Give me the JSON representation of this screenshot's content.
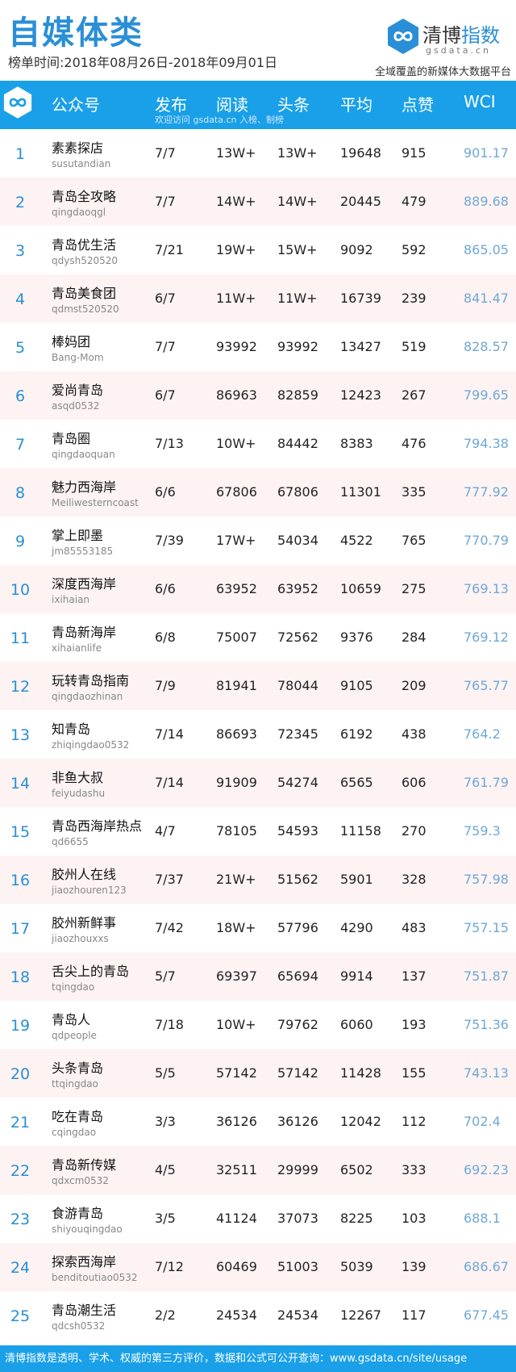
{
  "header": {
    "title": "自媒体类",
    "subtitle": "榜单时间:2018年08月26日-2018年09月01日",
    "brand_prefix": "清博",
    "brand_suffix": "指数",
    "brand_domain": "gsdata.cn",
    "tagline": "全域覆盖的新媒体大数据平台"
  },
  "table": {
    "columns": [
      "公众号",
      "发布",
      "阅读",
      "头条",
      "平均",
      "点赞",
      "WCI"
    ],
    "hint": "欢迎访问 gsdata.cn 入榜、制榜",
    "rows": [
      {
        "rank": "1",
        "name": "素素探店",
        "account": "susutandian",
        "publish": "7/7",
        "read": "13W+",
        "headline": "13W+",
        "avg": "19648",
        "likes": "915",
        "wci": "901.17"
      },
      {
        "rank": "2",
        "name": "青岛全攻略",
        "account": "qingdaoqgl",
        "publish": "7/7",
        "read": "14W+",
        "headline": "14W+",
        "avg": "20445",
        "likes": "479",
        "wci": "889.68"
      },
      {
        "rank": "3",
        "name": "青岛优生活",
        "account": "qdysh520520",
        "publish": "7/21",
        "read": "19W+",
        "headline": "15W+",
        "avg": "9092",
        "likes": "592",
        "wci": "865.05"
      },
      {
        "rank": "4",
        "name": "青岛美食团",
        "account": "qdmst520520",
        "publish": "6/7",
        "read": "11W+",
        "headline": "11W+",
        "avg": "16739",
        "likes": "239",
        "wci": "841.47"
      },
      {
        "rank": "5",
        "name": "棒妈团",
        "account": "Bang-Mom",
        "publish": "7/7",
        "read": "93992",
        "headline": "93992",
        "avg": "13427",
        "likes": "519",
        "wci": "828.57"
      },
      {
        "rank": "6",
        "name": "爱尚青岛",
        "account": "asqd0532",
        "publish": "6/7",
        "read": "86963",
        "headline": "82859",
        "avg": "12423",
        "likes": "267",
        "wci": "799.65"
      },
      {
        "rank": "7",
        "name": "青岛圈",
        "account": "qingdaoquan",
        "publish": "7/13",
        "read": "10W+",
        "headline": "84442",
        "avg": "8383",
        "likes": "476",
        "wci": "794.38"
      },
      {
        "rank": "8",
        "name": "魅力西海岸",
        "account": "Meiliwesterncoast",
        "publish": "6/6",
        "read": "67806",
        "headline": "67806",
        "avg": "11301",
        "likes": "335",
        "wci": "777.92"
      },
      {
        "rank": "9",
        "name": "掌上即墨",
        "account": "jm85553185",
        "publish": "7/39",
        "read": "17W+",
        "headline": "54034",
        "avg": "4522",
        "likes": "765",
        "wci": "770.79"
      },
      {
        "rank": "10",
        "name": "深度西海岸",
        "account": "ixihaian",
        "publish": "6/6",
        "read": "63952",
        "headline": "63952",
        "avg": "10659",
        "likes": "275",
        "wci": "769.13"
      },
      {
        "rank": "11",
        "name": "青岛新海岸",
        "account": "xihaianlife",
        "publish": "6/8",
        "read": "75007",
        "headline": "72562",
        "avg": "9376",
        "likes": "284",
        "wci": "769.12"
      },
      {
        "rank": "12",
        "name": "玩转青岛指南",
        "account": "qingdaozhinan",
        "publish": "7/9",
        "read": "81941",
        "headline": "78044",
        "avg": "9105",
        "likes": "209",
        "wci": "765.77"
      },
      {
        "rank": "13",
        "name": "知青岛",
        "account": "zhiqingdao0532",
        "publish": "7/14",
        "read": "86693",
        "headline": "72345",
        "avg": "6192",
        "likes": "438",
        "wci": "764.2"
      },
      {
        "rank": "14",
        "name": "非鱼大叔",
        "account": "feiyudashu",
        "publish": "7/14",
        "read": "91909",
        "headline": "54274",
        "avg": "6565",
        "likes": "606",
        "wci": "761.79"
      },
      {
        "rank": "15",
        "name": "青岛西海岸热点",
        "account": "qd6655",
        "publish": "4/7",
        "read": "78105",
        "headline": "54593",
        "avg": "11158",
        "likes": "270",
        "wci": "759.3"
      },
      {
        "rank": "16",
        "name": "胶州人在线",
        "account": "jiaozhouren123",
        "publish": "7/37",
        "read": "21W+",
        "headline": "51562",
        "avg": "5901",
        "likes": "328",
        "wci": "757.98"
      },
      {
        "rank": "17",
        "name": "胶州新鲜事",
        "account": "jiaozhouxxs",
        "publish": "7/42",
        "read": "18W+",
        "headline": "57796",
        "avg": "4290",
        "likes": "483",
        "wci": "757.15"
      },
      {
        "rank": "18",
        "name": "舌尖上的青岛",
        "account": "tqingdao",
        "publish": "5/7",
        "read": "69397",
        "headline": "65694",
        "avg": "9914",
        "likes": "137",
        "wci": "751.87"
      },
      {
        "rank": "19",
        "name": "青岛人",
        "account": "qdpeople",
        "publish": "7/18",
        "read": "10W+",
        "headline": "79762",
        "avg": "6060",
        "likes": "193",
        "wci": "751.36"
      },
      {
        "rank": "20",
        "name": "头条青岛",
        "account": "ttqingdao",
        "publish": "5/5",
        "read": "57142",
        "headline": "57142",
        "avg": "11428",
        "likes": "155",
        "wci": "743.13"
      },
      {
        "rank": "21",
        "name": "吃在青岛",
        "account": "cqingdao",
        "publish": "3/3",
        "read": "36126",
        "headline": "36126",
        "avg": "12042",
        "likes": "112",
        "wci": "702.4"
      },
      {
        "rank": "22",
        "name": "青岛新传媒",
        "account": "qdxcm0532",
        "publish": "4/5",
        "read": "32511",
        "headline": "29999",
        "avg": "6502",
        "likes": "333",
        "wci": "692.23"
      },
      {
        "rank": "23",
        "name": "食游青岛",
        "account": "shiyouqingdao",
        "publish": "3/5",
        "read": "41124",
        "headline": "37073",
        "avg": "8225",
        "likes": "103",
        "wci": "688.1"
      },
      {
        "rank": "24",
        "name": "探索西海岸",
        "account": "benditoutiao0532",
        "publish": "7/12",
        "read": "60469",
        "headline": "51003",
        "avg": "5039",
        "likes": "139",
        "wci": "686.67"
      },
      {
        "rank": "25",
        "name": "青岛潮生活",
        "account": "qdcsh0532",
        "publish": "2/2",
        "read": "24534",
        "headline": "24534",
        "avg": "12267",
        "likes": "117",
        "wci": "677.45"
      }
    ]
  },
  "footer": {
    "text": "清博指数是透明、学术、权威的第三方评价，数据和公式可公开查询：www.gsdata.cn/site/usage"
  },
  "colors": {
    "accent": "#1aa0e8",
    "title": "#2a8fd6",
    "wci": "#6fa8d6",
    "alt_row": "#fdf3f3"
  },
  "icons": [
    "infinity-logo-icon"
  ]
}
